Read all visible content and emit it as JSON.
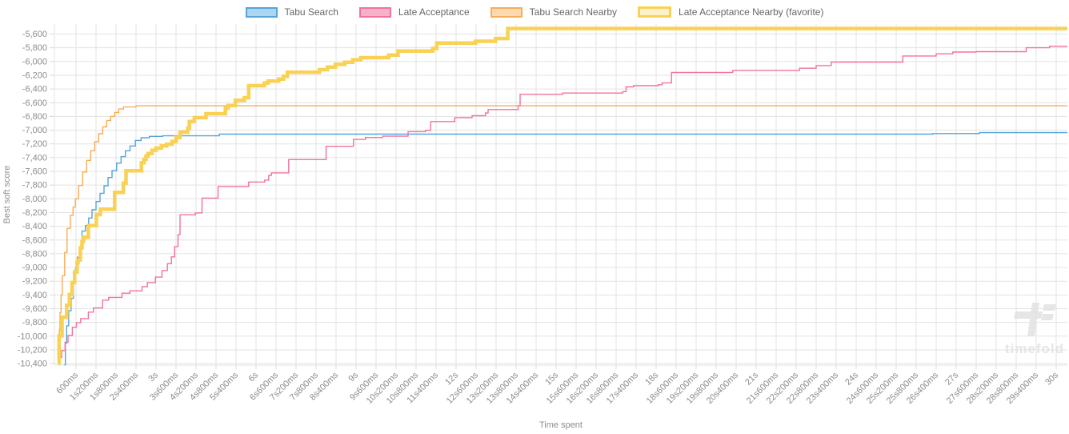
{
  "watermark": {
    "text": "timefold"
  },
  "legend": [
    {
      "label": "Tabu Search",
      "line_color": "#55a5d9",
      "fill_color": "#abd5f1",
      "thick": false
    },
    {
      "label": "Late Acceptance",
      "line_color": "#f2729f",
      "fill_color": "#f7b1c9",
      "thick": false
    },
    {
      "label": "Tabu Search Nearby",
      "line_color": "#f8ac5a",
      "fill_color": "#fcd9ae",
      "thick": false
    },
    {
      "label": "Late Acceptance Nearby (favorite)",
      "line_color": "#f8d158",
      "fill_color": "#fdf1c8",
      "thick": true
    }
  ],
  "axes": {
    "x_title": "Time spent",
    "y_title": "Best soft score"
  },
  "chart_data": {
    "type": "line",
    "subtype": "step-after",
    "title": "",
    "xlabel": "Time spent",
    "ylabel": "Best soft score",
    "grid": true,
    "legend_position": "top",
    "x_range_seconds": [
      0,
      30
    ],
    "y_range": [
      -10450,
      -5450
    ],
    "x_ticks": [
      "600ms",
      "1s200ms",
      "1s800ms",
      "2s400ms",
      "3s",
      "3s600ms",
      "4s200ms",
      "4s800ms",
      "5s400ms",
      "6s",
      "6s600ms",
      "7s200ms",
      "7s800ms",
      "8s400ms",
      "9s",
      "9s600ms",
      "10s200ms",
      "10s800ms",
      "11s400ms",
      "12s",
      "12s600ms",
      "13s200ms",
      "13s800ms",
      "14s400ms",
      "15s",
      "15s600ms",
      "16s200ms",
      "16s800ms",
      "17s400ms",
      "18s",
      "18s600ms",
      "19s200ms",
      "19s800ms",
      "20s400ms",
      "21s",
      "21s600ms",
      "22s200ms",
      "22s800ms",
      "23s400ms",
      "24s",
      "24s600ms",
      "25s200ms",
      "25s800ms",
      "26s400ms",
      "27s",
      "27s600ms",
      "28s200ms",
      "28s800ms",
      "29s400ms",
      "30s"
    ],
    "x_tick_interval_seconds": 0.6,
    "y_ticks": [
      "-5,600",
      "-5,800",
      "-6,000",
      "-6,200",
      "-6,400",
      "-6,600",
      "-6,800",
      "-7,000",
      "-7,200",
      "-7,400",
      "-7,600",
      "-7,800",
      "-8,000",
      "-8,200",
      "-8,400",
      "-8,600",
      "-8,800",
      "-9,000",
      "-9,200",
      "-9,400",
      "-9,600",
      "-9,800",
      "-10,000",
      "-10,200",
      "-10,400"
    ],
    "y_tick_values": [
      -5600,
      -5800,
      -6000,
      -6200,
      -6400,
      -6600,
      -6800,
      -7000,
      -7200,
      -7400,
      -7600,
      -7800,
      -8000,
      -8200,
      -8400,
      -8600,
      -8800,
      -9000,
      -9200,
      -9400,
      -9600,
      -9800,
      -10000,
      -10200,
      -10400
    ],
    "series": [
      {
        "name": "Tabu Search",
        "color": "#55a5d9",
        "width": 1.4,
        "points": [
          [
            0.25,
            -10430
          ],
          [
            0.28,
            -10100
          ],
          [
            0.32,
            -9850
          ],
          [
            0.38,
            -9630
          ],
          [
            0.45,
            -9450
          ],
          [
            0.52,
            -9230
          ],
          [
            0.58,
            -9010
          ],
          [
            0.64,
            -8850
          ],
          [
            0.7,
            -8720
          ],
          [
            0.78,
            -8470
          ],
          [
            0.88,
            -8390
          ],
          [
            0.98,
            -8280
          ],
          [
            1.08,
            -8160
          ],
          [
            1.2,
            -8040
          ],
          [
            1.32,
            -7920
          ],
          [
            1.44,
            -7810
          ],
          [
            1.56,
            -7690
          ],
          [
            1.68,
            -7590
          ],
          [
            1.82,
            -7480
          ],
          [
            1.95,
            -7385
          ],
          [
            2.08,
            -7300
          ],
          [
            2.22,
            -7230
          ],
          [
            2.38,
            -7150
          ],
          [
            2.55,
            -7110
          ],
          [
            2.8,
            -7090
          ],
          [
            3.2,
            -7082
          ],
          [
            4.9,
            -7058
          ],
          [
            26.3,
            -7050
          ],
          [
            27.7,
            -7035
          ],
          [
            30.3,
            -7035
          ]
        ]
      },
      {
        "name": "Late Acceptance",
        "color": "#f2729f",
        "width": 1.4,
        "points": [
          [
            0.13,
            -10310
          ],
          [
            0.17,
            -10210
          ],
          [
            0.27,
            -10090
          ],
          [
            0.36,
            -9990
          ],
          [
            0.49,
            -9870
          ],
          [
            0.61,
            -9805
          ],
          [
            0.74,
            -9745
          ],
          [
            0.97,
            -9650
          ],
          [
            1.12,
            -9590
          ],
          [
            1.4,
            -9475
          ],
          [
            1.58,
            -9435
          ],
          [
            1.98,
            -9375
          ],
          [
            2.22,
            -9340
          ],
          [
            2.58,
            -9280
          ],
          [
            2.74,
            -9220
          ],
          [
            2.98,
            -9140
          ],
          [
            3.18,
            -9045
          ],
          [
            3.34,
            -8945
          ],
          [
            3.46,
            -8845
          ],
          [
            3.56,
            -8695
          ],
          [
            3.66,
            -8520
          ],
          [
            3.72,
            -8232
          ],
          [
            4.18,
            -8205
          ],
          [
            4.38,
            -7990
          ],
          [
            4.86,
            -7820
          ],
          [
            5.78,
            -7755
          ],
          [
            6.26,
            -7727
          ],
          [
            6.38,
            -7660
          ],
          [
            6.46,
            -7622
          ],
          [
            6.98,
            -7428
          ],
          [
            8.1,
            -7235
          ],
          [
            8.92,
            -7135
          ],
          [
            9.28,
            -7107
          ],
          [
            9.8,
            -7088
          ],
          [
            10.56,
            -7022
          ],
          [
            11.08,
            -7002
          ],
          [
            11.24,
            -6875
          ],
          [
            11.96,
            -6817
          ],
          [
            12.48,
            -6790
          ],
          [
            12.88,
            -6750
          ],
          [
            12.96,
            -6700
          ],
          [
            13.86,
            -6645
          ],
          [
            13.92,
            -6478
          ],
          [
            15.2,
            -6460
          ],
          [
            17.0,
            -6438
          ],
          [
            17.1,
            -6370
          ],
          [
            17.32,
            -6352
          ],
          [
            18.06,
            -6338
          ],
          [
            18.18,
            -6312
          ],
          [
            18.46,
            -6160
          ],
          [
            20.3,
            -6130
          ],
          [
            22.3,
            -6098
          ],
          [
            22.8,
            -6060
          ],
          [
            23.25,
            -6008
          ],
          [
            25.4,
            -5920
          ],
          [
            26.4,
            -5888
          ],
          [
            26.9,
            -5862
          ],
          [
            27.6,
            -5856
          ],
          [
            29.1,
            -5800
          ],
          [
            29.8,
            -5778
          ],
          [
            30.3,
            -5778
          ]
        ]
      },
      {
        "name": "Tabu Search Nearby",
        "color": "#f8ac5a",
        "width": 1.4,
        "points": [
          [
            0.07,
            -10210
          ],
          [
            0.1,
            -9900
          ],
          [
            0.12,
            -9660
          ],
          [
            0.15,
            -9400
          ],
          [
            0.19,
            -9120
          ],
          [
            0.26,
            -8780
          ],
          [
            0.33,
            -8430
          ],
          [
            0.43,
            -8240
          ],
          [
            0.51,
            -8120
          ],
          [
            0.58,
            -8000
          ],
          [
            0.68,
            -7805
          ],
          [
            0.8,
            -7610
          ],
          [
            0.92,
            -7440
          ],
          [
            1.04,
            -7300
          ],
          [
            1.16,
            -7170
          ],
          [
            1.28,
            -7052
          ],
          [
            1.4,
            -6952
          ],
          [
            1.52,
            -6858
          ],
          [
            1.64,
            -6800
          ],
          [
            1.76,
            -6742
          ],
          [
            1.88,
            -6692
          ],
          [
            2.02,
            -6662
          ],
          [
            2.4,
            -6645
          ],
          [
            30.3,
            -6645
          ]
        ]
      },
      {
        "name": "Late Acceptance Nearby (favorite)",
        "color": "#f9d154",
        "width": 4.5,
        "points": [
          [
            0.06,
            -10390
          ],
          [
            0.09,
            -9995
          ],
          [
            0.18,
            -9725
          ],
          [
            0.32,
            -9550
          ],
          [
            0.4,
            -9395
          ],
          [
            0.48,
            -9220
          ],
          [
            0.56,
            -9065
          ],
          [
            0.63,
            -8930
          ],
          [
            0.66,
            -8890
          ],
          [
            0.73,
            -8715
          ],
          [
            0.78,
            -8620
          ],
          [
            0.82,
            -8560
          ],
          [
            0.97,
            -8390
          ],
          [
            1.21,
            -8230
          ],
          [
            1.33,
            -8152
          ],
          [
            1.76,
            -7905
          ],
          [
            2.02,
            -7770
          ],
          [
            2.1,
            -7592
          ],
          [
            2.56,
            -7475
          ],
          [
            2.64,
            -7425
          ],
          [
            2.7,
            -7378
          ],
          [
            2.76,
            -7340
          ],
          [
            2.88,
            -7292
          ],
          [
            3.0,
            -7262
          ],
          [
            3.16,
            -7230
          ],
          [
            3.32,
            -7205
          ],
          [
            3.48,
            -7165
          ],
          [
            3.6,
            -7105
          ],
          [
            3.72,
            -7030
          ],
          [
            3.95,
            -6972
          ],
          [
            4.0,
            -6875
          ],
          [
            4.15,
            -6817
          ],
          [
            4.5,
            -6760
          ],
          [
            5.08,
            -6680
          ],
          [
            5.16,
            -6640
          ],
          [
            5.38,
            -6565
          ],
          [
            5.65,
            -6527
          ],
          [
            5.78,
            -6352
          ],
          [
            6.25,
            -6313
          ],
          [
            6.36,
            -6286
          ],
          [
            6.68,
            -6255
          ],
          [
            6.82,
            -6215
          ],
          [
            6.94,
            -6158
          ],
          [
            7.9,
            -6119
          ],
          [
            8.14,
            -6080
          ],
          [
            8.38,
            -6042
          ],
          [
            8.66,
            -6010
          ],
          [
            8.9,
            -5976
          ],
          [
            9.14,
            -5944
          ],
          [
            9.98,
            -5906
          ],
          [
            10.26,
            -5848
          ],
          [
            11.3,
            -5810
          ],
          [
            11.42,
            -5731
          ],
          [
            12.58,
            -5705
          ],
          [
            13.18,
            -5665
          ],
          [
            13.55,
            -5520
          ],
          [
            30.3,
            -5520
          ]
        ]
      }
    ]
  }
}
